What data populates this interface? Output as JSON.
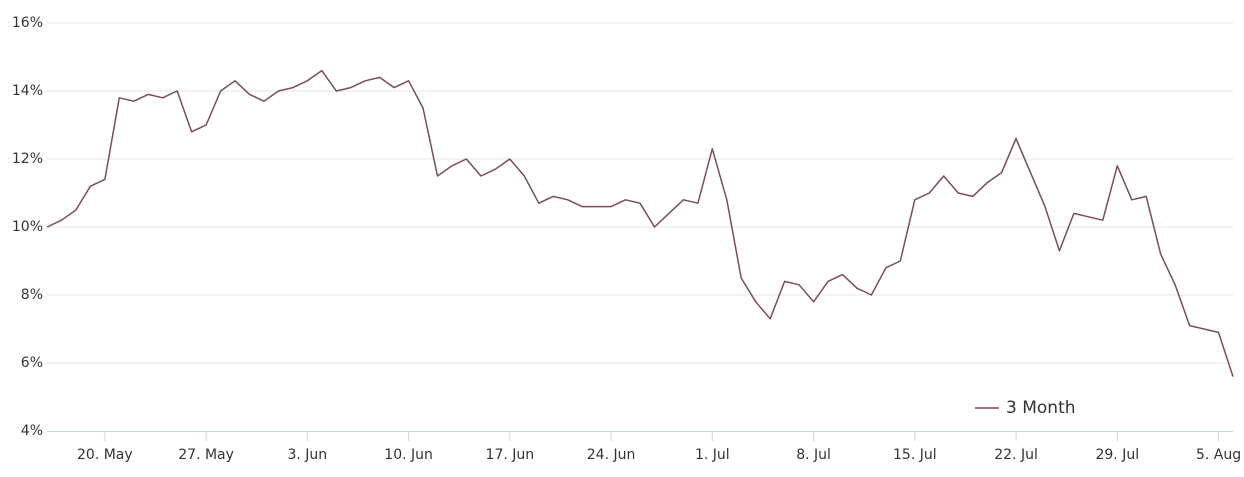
{
  "chart_data": {
    "type": "line",
    "x": [
      "05-16",
      "05-17",
      "05-18",
      "05-19",
      "05-20",
      "05-21",
      "05-22",
      "05-23",
      "05-24",
      "05-25",
      "05-26",
      "05-27",
      "05-28",
      "05-29",
      "05-30",
      "05-31",
      "06-01",
      "06-02",
      "06-03",
      "06-04",
      "06-05",
      "06-06",
      "06-07",
      "06-08",
      "06-09",
      "06-10",
      "06-11",
      "06-12",
      "06-13",
      "06-14",
      "06-15",
      "06-16",
      "06-17",
      "06-18",
      "06-19",
      "06-20",
      "06-21",
      "06-22",
      "06-23",
      "06-24",
      "06-25",
      "06-26",
      "06-27",
      "06-28",
      "06-29",
      "06-30",
      "07-01",
      "07-02",
      "07-03",
      "07-04",
      "07-05",
      "07-06",
      "07-07",
      "07-08",
      "07-09",
      "07-10",
      "07-11",
      "07-12",
      "07-13",
      "07-14",
      "07-15",
      "07-16",
      "07-17",
      "07-18",
      "07-19",
      "07-20",
      "07-21",
      "07-22",
      "07-23",
      "07-24",
      "07-25",
      "07-26",
      "07-27",
      "07-28",
      "07-29",
      "07-30",
      "07-31",
      "08-01",
      "08-02",
      "08-03",
      "08-04",
      "08-05",
      "08-06"
    ],
    "series": [
      {
        "name": "3 Month",
        "color": "#7c4b5f",
        "values": [
          10.0,
          10.2,
          10.5,
          11.2,
          11.4,
          13.8,
          13.7,
          13.9,
          13.8,
          14.0,
          12.8,
          13.0,
          14.0,
          14.3,
          13.9,
          13.7,
          14.0,
          14.1,
          14.3,
          14.6,
          14.0,
          14.1,
          14.3,
          14.4,
          14.1,
          14.3,
          13.5,
          11.5,
          11.8,
          12.0,
          11.5,
          11.7,
          12.0,
          11.5,
          10.7,
          10.9,
          10.8,
          10.6,
          10.6,
          10.6,
          10.8,
          10.7,
          10.0,
          10.4,
          10.8,
          10.7,
          12.3,
          10.8,
          8.5,
          7.8,
          7.3,
          8.4,
          8.3,
          7.8,
          8.4,
          8.6,
          8.2,
          8.0,
          8.8,
          9.0,
          10.8,
          11.0,
          11.5,
          11.0,
          10.9,
          11.3,
          11.6,
          12.6,
          11.6,
          10.6,
          9.3,
          10.4,
          10.3,
          10.2,
          11.8,
          10.8,
          10.9,
          9.2,
          8.3,
          7.1,
          7.0,
          6.9,
          5.6
        ]
      }
    ],
    "xlim": [
      "05-16",
      "08-06"
    ],
    "xticks": [
      {
        "value": "05-20",
        "label": "20. May"
      },
      {
        "value": "05-27",
        "label": "27. May"
      },
      {
        "value": "06-03",
        "label": "3. Jun"
      },
      {
        "value": "06-10",
        "label": "10. Jun"
      },
      {
        "value": "06-17",
        "label": "17. Jun"
      },
      {
        "value": "06-24",
        "label": "24. Jun"
      },
      {
        "value": "07-01",
        "label": "1. Jul"
      },
      {
        "value": "07-08",
        "label": "8. Jul"
      },
      {
        "value": "07-15",
        "label": "15. Jul"
      },
      {
        "value": "07-22",
        "label": "22. Jul"
      },
      {
        "value": "07-29",
        "label": "29. Jul"
      },
      {
        "value": "08-05",
        "label": "5. Aug"
      }
    ],
    "ylim": [
      4,
      16
    ],
    "yticks": [
      {
        "value": 4,
        "label": "4%"
      },
      {
        "value": 6,
        "label": "6%"
      },
      {
        "value": 8,
        "label": "8%"
      },
      {
        "value": 10,
        "label": "10%"
      },
      {
        "value": 12,
        "label": "12%"
      },
      {
        "value": 14,
        "label": "14%"
      },
      {
        "value": 16,
        "label": "16%"
      }
    ],
    "grid": true,
    "legend": "bottom-right"
  }
}
